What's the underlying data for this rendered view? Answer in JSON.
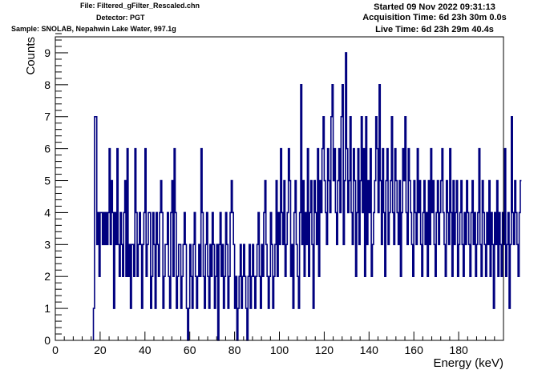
{
  "header": {
    "file": "File: Filtered_gFilter_Rescaled.chn",
    "detector": "Detector: PGT",
    "sample": "Sample: SNOLAB, Nepahwin Lake Water, 997.1g",
    "started": "Started 09 Nov 2022 09:31:13",
    "acquisition": "Acquisition Time: 6d 23h 30m 0.0s",
    "live": "Live Time: 6d 23h 29m 40.4s"
  },
  "colors": {
    "line": "#00007f",
    "frame": "#000000",
    "background": "#ffffff"
  },
  "chart_data": {
    "type": "line",
    "title": "",
    "xlabel": "Energy (keV)",
    "ylabel": "Counts",
    "xlim": [
      0,
      200
    ],
    "ylim": [
      0,
      9.5
    ],
    "x_ticks": [
      0,
      20,
      40,
      60,
      80,
      100,
      120,
      140,
      160,
      180
    ],
    "y_ticks": [
      0,
      1,
      2,
      3,
      4,
      5,
      6,
      7,
      8,
      9
    ],
    "grid": false,
    "legend": "none",
    "x_start": 17.0,
    "bin_width": 0.5,
    "counts": [
      1,
      7,
      7,
      3,
      4,
      2,
      4,
      4,
      3,
      4,
      3,
      4,
      3,
      4,
      6,
      3,
      5,
      4,
      1,
      4,
      3,
      6,
      3,
      2,
      4,
      3,
      2,
      4,
      5,
      2,
      6,
      2,
      3,
      1,
      3,
      3,
      2,
      6,
      4,
      2,
      3,
      4,
      3,
      1,
      3,
      4,
      6,
      2,
      3,
      4,
      4,
      1,
      2,
      4,
      3,
      1,
      4,
      3,
      2,
      4,
      5,
      4,
      1,
      2,
      3,
      3,
      4,
      2,
      1,
      4,
      5,
      2,
      6,
      4,
      1,
      2,
      3,
      3,
      1,
      2,
      3,
      4,
      3,
      1,
      0,
      1,
      3,
      2,
      1,
      3,
      4,
      2,
      1,
      2,
      3,
      2,
      6,
      4,
      2,
      1,
      3,
      4,
      2,
      1,
      3,
      2,
      4,
      3,
      1,
      2,
      3,
      0,
      3,
      4,
      2,
      3,
      1,
      2,
      4,
      3,
      1,
      2,
      4,
      5,
      4,
      3,
      1,
      2,
      0,
      1,
      2,
      3,
      1,
      2,
      3,
      2,
      1,
      0,
      2,
      3,
      1,
      2,
      3,
      2,
      1,
      2,
      3,
      4,
      2,
      1,
      3,
      2,
      4,
      5,
      3,
      2,
      1,
      2,
      4,
      3,
      1,
      2,
      3,
      5,
      2,
      4,
      3,
      6,
      4,
      3,
      5,
      2,
      3,
      4,
      6,
      5,
      2,
      3,
      1,
      4,
      5,
      3,
      2,
      1,
      4,
      8,
      3,
      5,
      2,
      4,
      3,
      6,
      2,
      4,
      5,
      3,
      1,
      5,
      4,
      3,
      6,
      2,
      5,
      4,
      6,
      7,
      5,
      4,
      3,
      6,
      5,
      4,
      7,
      8,
      5,
      6,
      4,
      3,
      5,
      6,
      4,
      7,
      8,
      3,
      5,
      9,
      6,
      4,
      5,
      7,
      4,
      3,
      6,
      5,
      2,
      4,
      6,
      3,
      5,
      7,
      4,
      6,
      2,
      7,
      3,
      5,
      4,
      6,
      2,
      3,
      4,
      5,
      7,
      6,
      4,
      8,
      5,
      3,
      6,
      4,
      2,
      5,
      6,
      3,
      4,
      5,
      7,
      4,
      3,
      6,
      5,
      4,
      3,
      5,
      2,
      4,
      6,
      5,
      7,
      4,
      3,
      6,
      5,
      4,
      3,
      2,
      5,
      4,
      3,
      6,
      4,
      5,
      3,
      2,
      4,
      5,
      3,
      4,
      2,
      5,
      3,
      6,
      4,
      5,
      3,
      2,
      4,
      5,
      3,
      4,
      5,
      6,
      4,
      3,
      2,
      5,
      4,
      3,
      6,
      4,
      2,
      5,
      3,
      4,
      5,
      2,
      3,
      4,
      5,
      3,
      2,
      4,
      3,
      5,
      4,
      3,
      2,
      4,
      5,
      3,
      4,
      2,
      3,
      4,
      6,
      3,
      2,
      5,
      4,
      3,
      2,
      4,
      3,
      5,
      2,
      4,
      3,
      1,
      4,
      3,
      5,
      2,
      4,
      3,
      2,
      4,
      3,
      6,
      2,
      3,
      4,
      1,
      3,
      7,
      4,
      3,
      5,
      4,
      3,
      2,
      4,
      5
    ]
  }
}
